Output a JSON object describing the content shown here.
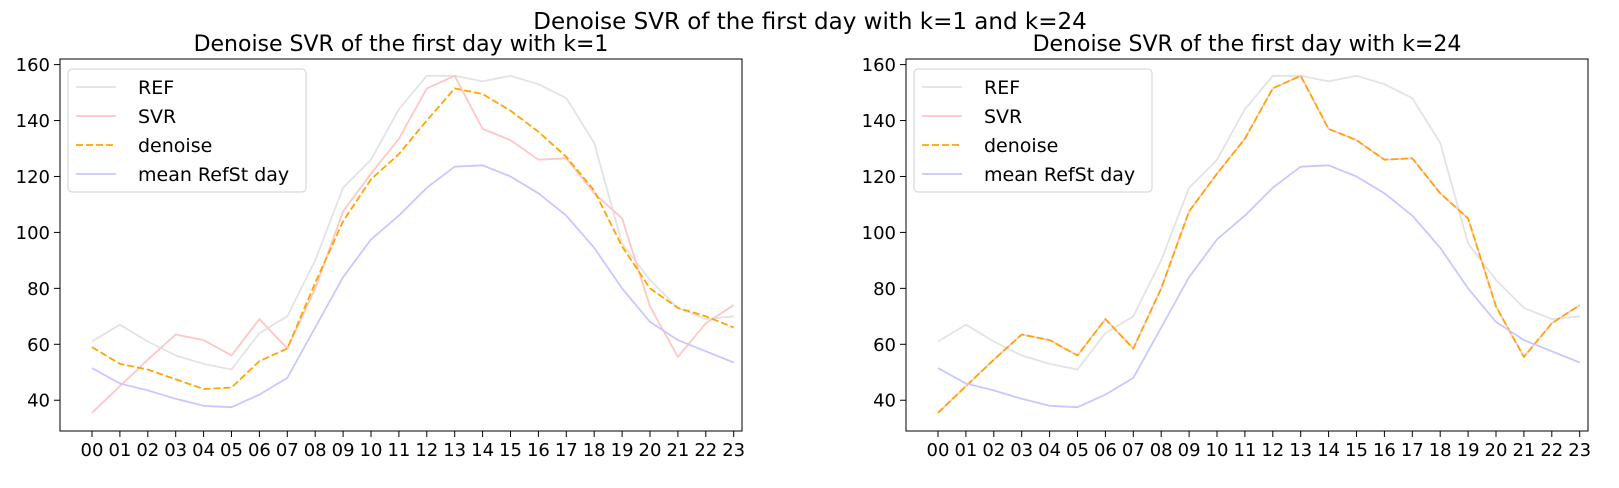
{
  "suptitle": "Denoise SVR of the first day with k=1 and k=24",
  "chart_data": [
    {
      "type": "line",
      "title": "Denoise SVR of the first day with k=1",
      "xlabel": "",
      "ylabel": "",
      "categories": [
        "00",
        "01",
        "02",
        "03",
        "04",
        "05",
        "06",
        "07",
        "08",
        "09",
        "10",
        "11",
        "12",
        "13",
        "14",
        "15",
        "16",
        "17",
        "18",
        "19",
        "20",
        "21",
        "22",
        "23"
      ],
      "ylim": [
        29,
        162
      ],
      "yticks": [
        40,
        60,
        80,
        100,
        120,
        140,
        160
      ],
      "legend_position": "upper-left",
      "grid": false,
      "series": [
        {
          "name": "REF",
          "color": "#e3e3e3",
          "dash": "solid",
          "values": [
            61,
            67,
            61,
            56,
            53,
            51,
            64,
            70,
            90,
            116,
            126,
            144,
            156,
            156,
            154,
            156,
            153,
            148,
            132,
            96,
            83,
            73,
            69,
            70
          ]
        },
        {
          "name": "SVR",
          "color": "#ffc6c6",
          "dash": "solid",
          "values": [
            35.5,
            45,
            54.5,
            63.5,
            61.5,
            56,
            69,
            58.5,
            80,
            107.5,
            121,
            133.5,
            151.5,
            156,
            137,
            133,
            126,
            126.5,
            114,
            105,
            73.5,
            55.5,
            67.5,
            74
          ]
        },
        {
          "name": "denoise",
          "color": "#ffa500",
          "dash": "dashed",
          "values": [
            59,
            53,
            51,
            47.5,
            44,
            44.5,
            54,
            58.5,
            82,
            104,
            119,
            128,
            140,
            151.5,
            149.5,
            143.5,
            136,
            127,
            115,
            95,
            80,
            73,
            70,
            66
          ]
        },
        {
          "name": "mean RefSt day",
          "color": "#c8c8ff",
          "dash": "solid",
          "values": [
            51.5,
            46,
            43.5,
            40.5,
            38,
            37.5,
            42,
            48,
            66,
            84,
            97.5,
            106,
            116,
            123.5,
            124,
            120,
            114,
            106,
            94.5,
            80,
            68,
            61.5,
            57.5,
            53.5
          ]
        }
      ]
    },
    {
      "type": "line",
      "title": "Denoise SVR of the first day with k=24",
      "xlabel": "",
      "ylabel": "",
      "categories": [
        "00",
        "01",
        "02",
        "03",
        "04",
        "05",
        "06",
        "07",
        "08",
        "09",
        "10",
        "11",
        "12",
        "13",
        "14",
        "15",
        "16",
        "17",
        "18",
        "19",
        "20",
        "21",
        "22",
        "23"
      ],
      "ylim": [
        29,
        162
      ],
      "yticks": [
        40,
        60,
        80,
        100,
        120,
        140,
        160
      ],
      "legend_position": "upper-left",
      "grid": false,
      "series": [
        {
          "name": "REF",
          "color": "#e3e3e3",
          "dash": "solid",
          "values": [
            61,
            67,
            61,
            56,
            53,
            51,
            64,
            70,
            90,
            116,
            126,
            144,
            156,
            156,
            154,
            156,
            153,
            148,
            132,
            96,
            83,
            73,
            69,
            70
          ]
        },
        {
          "name": "SVR",
          "color": "#ffc6c6",
          "dash": "solid",
          "values": [
            35.5,
            45,
            54.5,
            63.5,
            61.5,
            56,
            69,
            58.5,
            80,
            107.5,
            121,
            133.5,
            151.5,
            156,
            137,
            133,
            126,
            126.5,
            114,
            105,
            73.5,
            55.5,
            67.5,
            74
          ]
        },
        {
          "name": "denoise",
          "color": "#ffa500",
          "dash": "dashed",
          "values": [
            35.5,
            45,
            54.5,
            63.5,
            61.5,
            56,
            69,
            58.5,
            80,
            107.5,
            121,
            133.5,
            151.5,
            156,
            137,
            133,
            126,
            126.5,
            114,
            105,
            73.5,
            55.5,
            67.5,
            74
          ]
        },
        {
          "name": "mean RefSt day",
          "color": "#c8c8ff",
          "dash": "solid",
          "values": [
            51.5,
            46,
            43.5,
            40.5,
            38,
            37.5,
            42,
            48,
            66,
            84,
            97.5,
            106,
            116,
            123.5,
            124,
            120,
            114,
            106,
            94.5,
            80,
            68,
            61.5,
            57.5,
            53.5
          ]
        }
      ]
    }
  ]
}
